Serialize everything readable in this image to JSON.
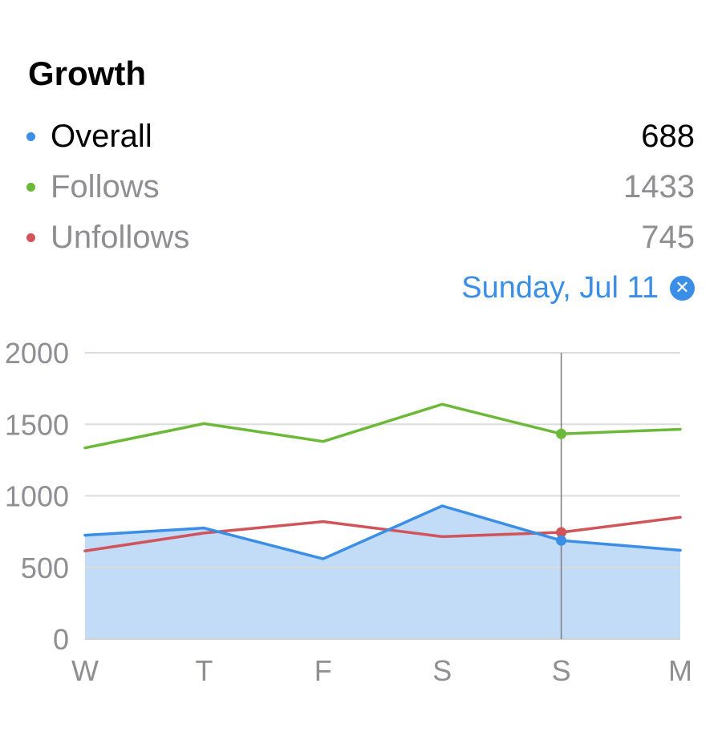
{
  "header": {
    "title": "Growth"
  },
  "legend": [
    {
      "name": "Overall",
      "value": "688",
      "color": "#3b8ee6"
    },
    {
      "name": "Follows",
      "value": "1433",
      "color": "#6cb93a"
    },
    {
      "name": "Unfollows",
      "value": "745",
      "color": "#d1545b"
    }
  ],
  "selection": {
    "label": "Sunday, Jul 11",
    "clear_icon": "xmark-circle-fill-icon"
  },
  "chart_data": {
    "type": "line",
    "categories": [
      "W",
      "T",
      "F",
      "S",
      "S",
      "M"
    ],
    "ylim": [
      0,
      2000
    ],
    "yticks": [
      0,
      500,
      1000,
      1500,
      2000
    ],
    "ytick_labels": [
      "0",
      "500",
      "1000",
      "1500",
      "2000"
    ],
    "grid": true,
    "selected_index": 4,
    "series": [
      {
        "name": "Follows",
        "color": "#6cb93a",
        "values": [
          1335,
          1505,
          1380,
          1640,
          1433,
          1465
        ],
        "area": false
      },
      {
        "name": "Unfollows",
        "color": "#d1545b",
        "values": [
          615,
          740,
          820,
          715,
          745,
          850
        ],
        "area": false
      },
      {
        "name": "Overall",
        "color": "#3b8ee6",
        "values": [
          725,
          775,
          560,
          930,
          688,
          620
        ],
        "area": true,
        "area_color": "#c2dbf7"
      }
    ]
  }
}
